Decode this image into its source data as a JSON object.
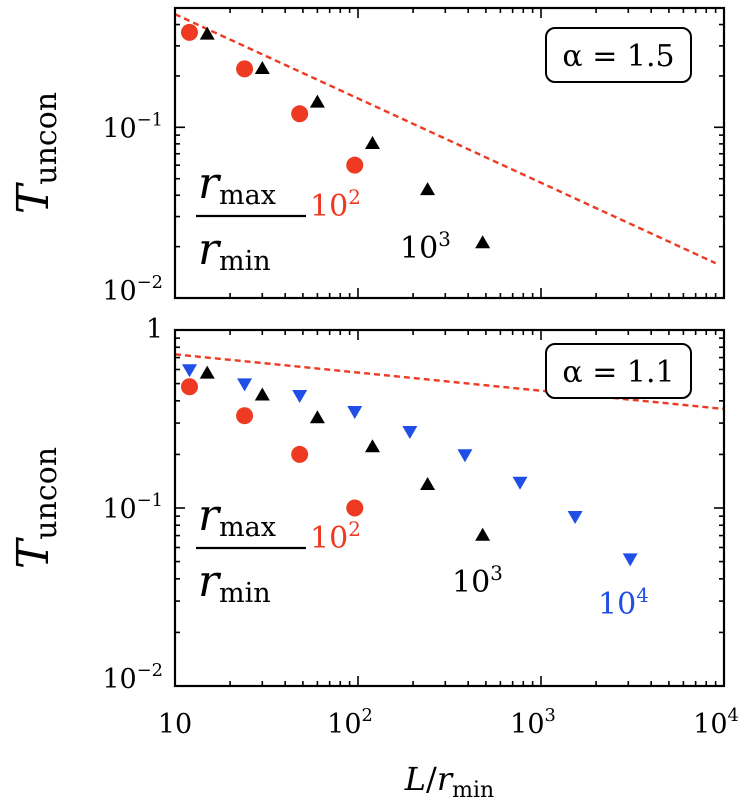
{
  "chart_data": [
    {
      "type": "scatter",
      "x_scale": "log",
      "y_scale": "log",
      "xlim": [
        10,
        10000
      ],
      "ylim": [
        0.01,
        0.5
      ],
      "ylabel": "T_uncon",
      "ylabel_main": "T",
      "ylabel_sub": "uncon",
      "y_ticks": [
        {
          "base": "10",
          "exp": "−1",
          "value": 0.1
        },
        {
          "base": "10",
          "exp": "−2",
          "value": 0.01
        }
      ],
      "alpha_label": "α = 1.5",
      "fraction_num_main": "r",
      "fraction_num_sub": "max",
      "fraction_den_main": "r",
      "fraction_den_sub": "min",
      "series": [
        {
          "marker": "circle",
          "color": "#ee3a22",
          "label_base": "10",
          "label_exp": "2",
          "points": [
            [
              12,
              0.36
            ],
            [
              24,
              0.22
            ],
            [
              48,
              0.12
            ],
            [
              96,
              0.06
            ]
          ]
        },
        {
          "marker": "triangle-up",
          "color": "#000000",
          "label_base": "10",
          "label_exp": "3",
          "points": [
            [
              15,
              0.35
            ],
            [
              30,
              0.22
            ],
            [
              60,
              0.14
            ],
            [
              120,
              0.08
            ],
            [
              240,
              0.043
            ],
            [
              480,
              0.021
            ]
          ]
        }
      ],
      "guide_line": {
        "style": "dashed",
        "color": "#ee3a22",
        "points": [
          [
            10,
            0.46
          ],
          [
            9000,
            0.016
          ]
        ]
      }
    },
    {
      "type": "scatter",
      "x_scale": "log",
      "y_scale": "log",
      "xlim": [
        10,
        10000
      ],
      "ylim": [
        0.01,
        1
      ],
      "ylabel": "T_uncon",
      "ylabel_main": "T",
      "ylabel_sub": "uncon",
      "y_ticks": [
        {
          "base": "1",
          "exp": "",
          "value": 1
        },
        {
          "base": "10",
          "exp": "−1",
          "value": 0.1
        },
        {
          "base": "10",
          "exp": "−2",
          "value": 0.01
        }
      ],
      "alpha_label": "α = 1.1",
      "fraction_num_main": "r",
      "fraction_num_sub": "max",
      "fraction_den_main": "r",
      "fraction_den_sub": "min",
      "series": [
        {
          "marker": "circle",
          "color": "#ee3a22",
          "label_base": "10",
          "label_exp": "2",
          "points": [
            [
              12,
              0.48
            ],
            [
              24,
              0.33
            ],
            [
              48,
              0.2
            ],
            [
              96,
              0.1
            ]
          ]
        },
        {
          "marker": "triangle-up",
          "color": "#000000",
          "label_base": "10",
          "label_exp": "3",
          "points": [
            [
              15,
              0.57
            ],
            [
              30,
              0.43
            ],
            [
              60,
              0.32
            ],
            [
              120,
              0.22
            ],
            [
              240,
              0.135
            ],
            [
              480,
              0.07
            ]
          ]
        },
        {
          "marker": "triangle-down",
          "color": "#1f4fe6",
          "label_base": "10",
          "label_exp": "4",
          "points": [
            [
              12,
              0.6
            ],
            [
              24,
              0.5
            ],
            [
              48,
              0.43
            ],
            [
              96,
              0.35
            ],
            [
              192,
              0.27
            ],
            [
              384,
              0.2
            ],
            [
              768,
              0.14
            ],
            [
              1536,
              0.09
            ],
            [
              3072,
              0.052
            ]
          ]
        }
      ],
      "guide_line": {
        "style": "dashed",
        "color": "#ee3a22",
        "points": [
          [
            10,
            0.73
          ],
          [
            10000,
            0.36
          ]
        ]
      }
    }
  ],
  "x_axis": {
    "label_main": "L",
    "label_slash": "/",
    "label_r": "r",
    "label_sub": "min",
    "ticks": [
      {
        "base": "10",
        "exp": "",
        "value": 10
      },
      {
        "base": "10",
        "exp": "2",
        "value": 100
      },
      {
        "base": "10",
        "exp": "3",
        "value": 1000
      },
      {
        "base": "10",
        "exp": "4",
        "value": 10000
      }
    ]
  }
}
